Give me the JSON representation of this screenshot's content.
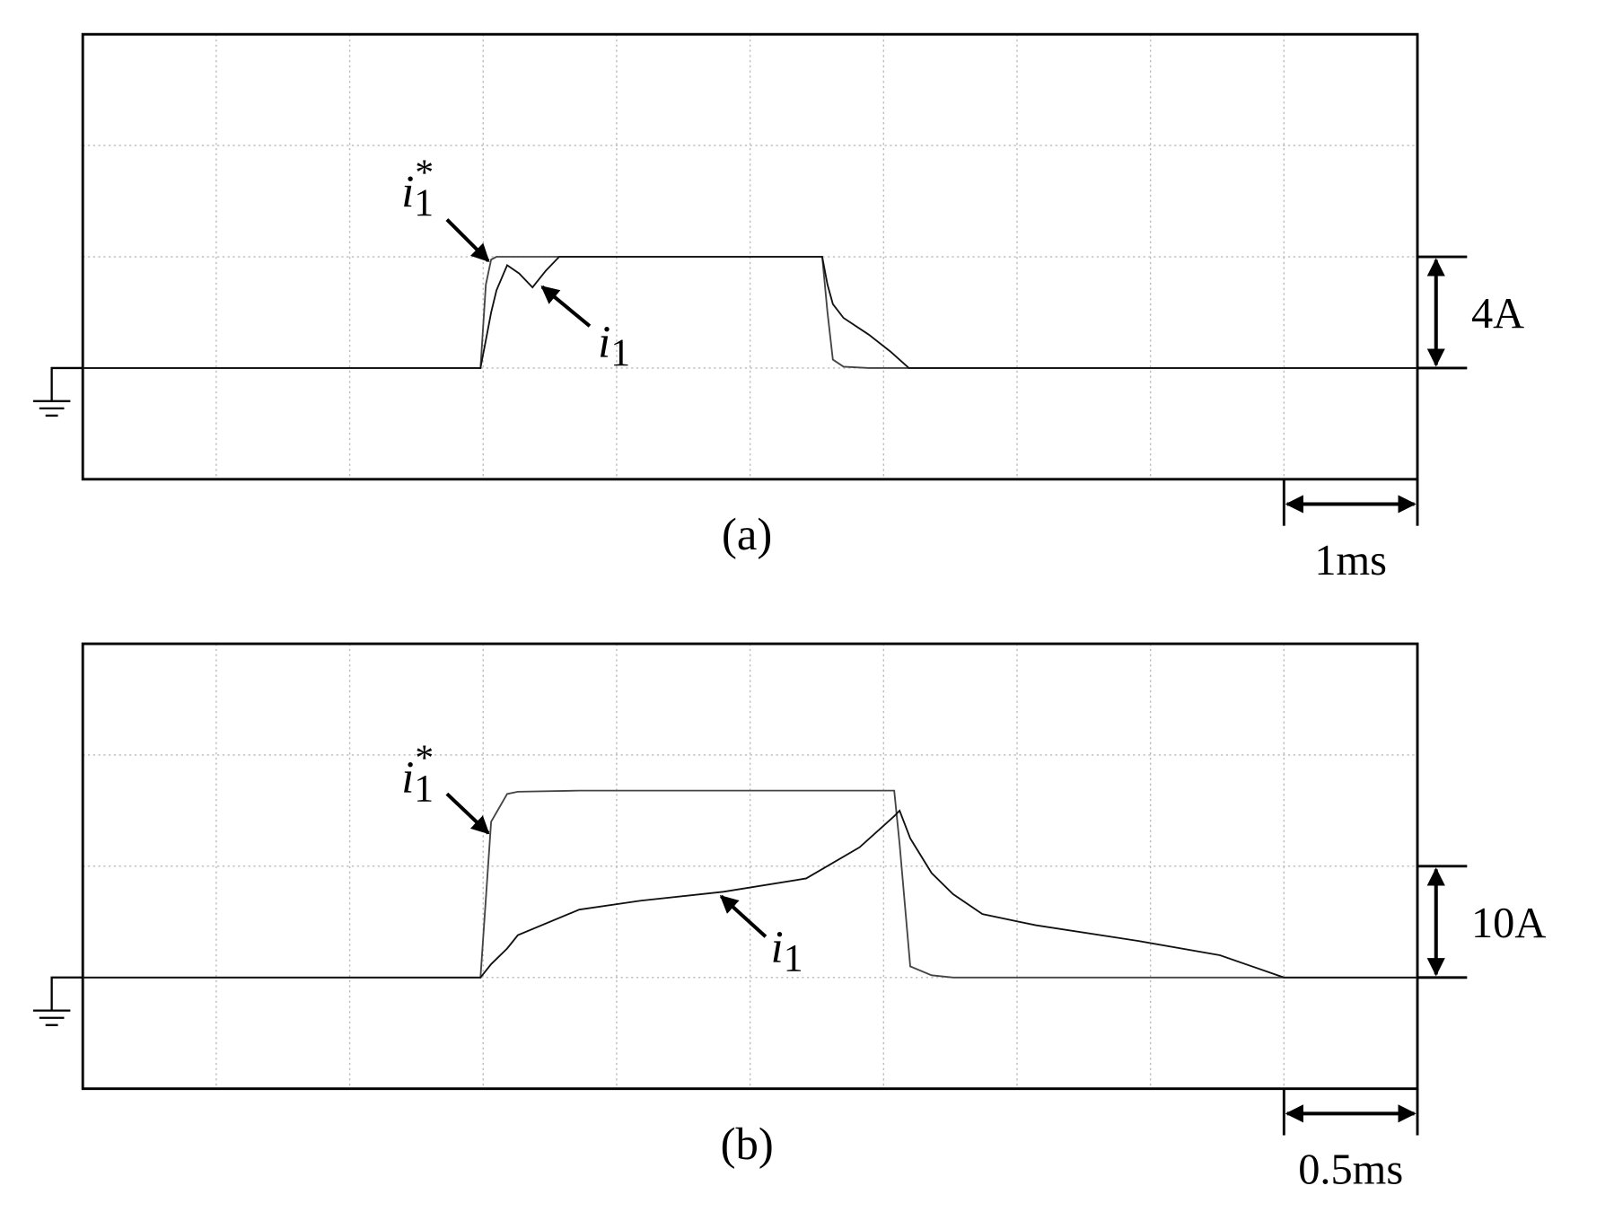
{
  "chart_data": [
    {
      "type": "line",
      "caption": "(a)",
      "y_scale_label": "4A",
      "x_scale_label": "1ms",
      "grid": true,
      "xlim": [
        0,
        10
      ],
      "xticks": [
        0,
        1,
        2,
        3,
        4,
        5,
        6,
        7,
        8,
        9,
        10
      ],
      "ylim": [
        -4,
        12
      ],
      "yticks": [
        -4,
        0,
        4,
        8,
        12
      ],
      "x": [
        0,
        2.98,
        3.02,
        3.06,
        3.1,
        3.18,
        3.27,
        3.37,
        3.47,
        3.57,
        4.5,
        5.54,
        5.58,
        5.62,
        5.7,
        5.89,
        6.05,
        6.19,
        10
      ],
      "series": [
        {
          "name": "i1*",
          "color": "#444444",
          "values": [
            0,
            0,
            3.0,
            3.9,
            4,
            4,
            4,
            4,
            4,
            4,
            4,
            4,
            2.0,
            0.3,
            0.05,
            0,
            0,
            0,
            0
          ]
        },
        {
          "name": "i1",
          "color": "#111111",
          "values": [
            0,
            0,
            1.0,
            2.0,
            2.8,
            3.7,
            3.4,
            2.9,
            3.5,
            4,
            4,
            4,
            3.0,
            2.3,
            1.8,
            1.2,
            0.6,
            0,
            0
          ]
        }
      ],
      "annotations": [
        {
          "text": "i",
          "sub": "1",
          "sup": "*"
        },
        {
          "text": "i",
          "sub": "1"
        }
      ]
    },
    {
      "type": "line",
      "caption": "(b)",
      "y_scale_label": "10A",
      "x_scale_label": "0.5ms",
      "grid": true,
      "xlim": [
        0,
        5
      ],
      "xticks": [
        0,
        0.5,
        1,
        1.5,
        2,
        2.5,
        3,
        3.5,
        4,
        4.5,
        5
      ],
      "ylim": [
        -10,
        30
      ],
      "yticks": [
        -10,
        0,
        10,
        20,
        30
      ],
      "x": [
        0,
        1.49,
        1.53,
        1.59,
        1.63,
        1.86,
        2.09,
        2.4,
        2.71,
        2.91,
        3.04,
        3.06,
        3.1,
        3.18,
        3.26,
        3.37,
        3.57,
        3.95,
        4.26,
        4.5,
        5
      ],
      "series": [
        {
          "name": "i1*",
          "color": "#444444",
          "values": [
            0,
            0,
            14,
            16.5,
            16.7,
            16.8,
            16.8,
            16.8,
            16.8,
            16.8,
            16.8,
            12,
            1,
            0.2,
            0,
            0,
            0,
            0,
            0,
            0,
            0
          ]
        },
        {
          "name": "i1",
          "color": "#111111",
          "values": [
            0,
            0,
            1.2,
            2.6,
            3.8,
            6.1,
            6.9,
            7.7,
            8.9,
            11.7,
            14.5,
            15.0,
            12.5,
            9.4,
            7.5,
            5.7,
            4.7,
            3.3,
            2.0,
            0,
            0
          ]
        }
      ],
      "annotations": [
        {
          "text": "i",
          "sub": "1",
          "sup": "*"
        },
        {
          "text": "i",
          "sub": "1"
        }
      ]
    }
  ]
}
